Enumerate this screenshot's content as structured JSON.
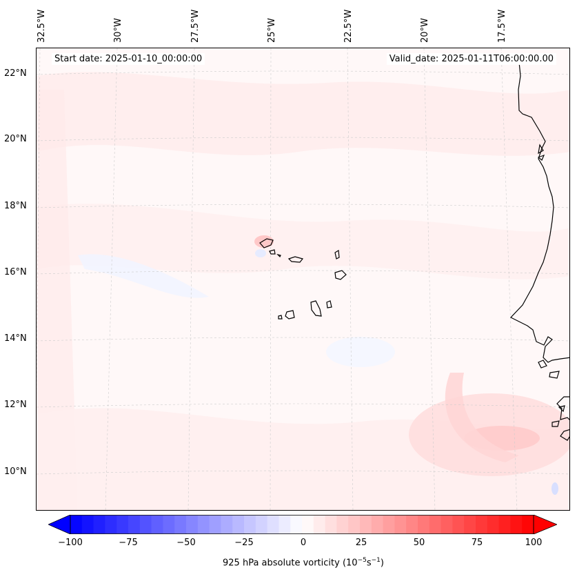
{
  "annotations": {
    "start_date": "Start date: 2025-01-10_00:00:00",
    "valid_date": "Valid_date: 2025-01-11T06:00:00.00"
  },
  "longitude_labels": [
    "32.5°W",
    "30°W",
    "27.5°W",
    "25°W",
    "22.5°W",
    "20°W",
    "17.5°W"
  ],
  "latitude_labels": [
    "22°N",
    "20°N",
    "18°N",
    "16°N",
    "14°N",
    "12°N",
    "10°N"
  ],
  "colorbar": {
    "label_prefix": "925 hPa absolute vorticity (10",
    "label_exp1": "−5",
    "label_mid": "s",
    "label_exp2": "−1",
    "label_suffix": ")",
    "ticks": [
      "−100",
      "−75",
      "−50",
      "−25",
      "0",
      "25",
      "50",
      "75",
      "100"
    ],
    "min": -100,
    "max": 100,
    "levels": 40,
    "colormap": "bwr",
    "extend": "both"
  },
  "colors": {
    "background_field": "#fff8f8",
    "coastline": "#000000",
    "gridline": "#cccccc"
  }
}
